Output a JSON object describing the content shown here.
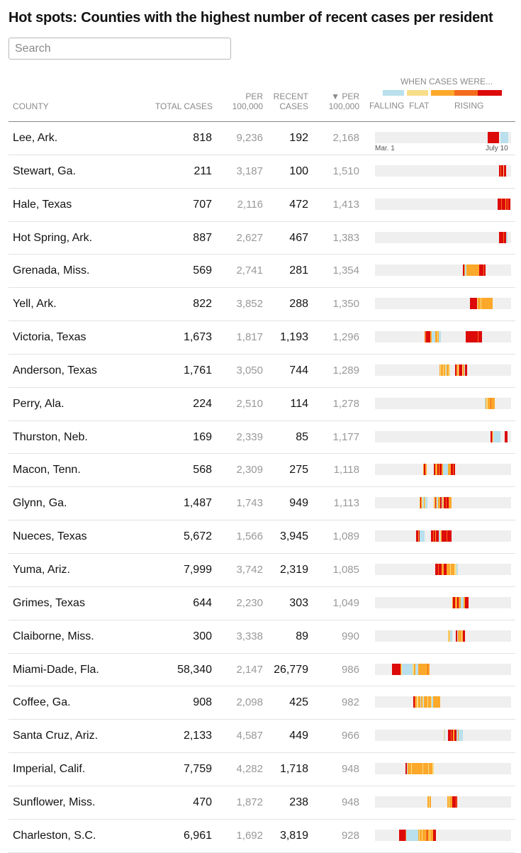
{
  "title": "Hot spots: Counties with the highest number of recent cases per resident",
  "search": {
    "placeholder": "Search"
  },
  "headers": {
    "county": "COUNTY",
    "total": "TOTAL CASES",
    "per": [
      "PER",
      "100,000"
    ],
    "recent": [
      "RECENT",
      "CASES"
    ],
    "recent_per": [
      "▼ PER",
      "100,000"
    ]
  },
  "legend": {
    "title": "WHEN CASES WERE...",
    "falling": "FALLING",
    "flat": "FLAT",
    "rising": "RISING",
    "colors": {
      "none": "#efefef",
      "falling": "#b9e0ec",
      "flat": "#f8dd8a",
      "rising1": "#fca82a",
      "rising2": "#f56b1e",
      "rising3": "#dd0a0a"
    }
  },
  "axis": {
    "start": "Mar. 1",
    "end": "July 10"
  },
  "rows": [
    {
      "county": "Lee, Ark.",
      "total": "818",
      "per": "9,236",
      "recent": "192",
      "recent_per": "2,168",
      "trend": "...............................................................................................................................................................RRRRRRRRRRRRRRRRrrfffffffffff"
    },
    {
      "county": "Stewart, Ga.",
      "total": "211",
      "per": "3,187",
      "recent": "100",
      "recent_per": "1,510",
      "trend": "...............................................................................................................................................................................RRmRRRYRRR"
    },
    {
      "county": "Hale, Texas",
      "total": "707",
      "per": "2,116",
      "recent": "472",
      "recent_per": "1,413",
      "trend": ".............................................................................................................................................................................RRRRRmRRRRRoRRmRRR"
    },
    {
      "county": "Hot Spring, Ark.",
      "total": "887",
      "per": "2,627",
      "recent": "467",
      "recent_per": "1,383",
      "trend": "...............................................................................................................................................................................RRRRRRmRRRff"
    },
    {
      "county": "Grenada, Miss.",
      "total": "569",
      "per": "2,741",
      "recent": "281",
      "recent_per": "1,354",
      "trend": "............................................................................................................................RRoffooooooooooooooooooRRRRRRmRR"
    },
    {
      "county": "Yell, Ark.",
      "total": "822",
      "per": "3,852",
      "recent": "288",
      "recent_per": "1,350",
      "trend": "......................................................................................................................................RRRRRRRRRRYooooYoooooooooooooooo"
    },
    {
      "county": "Victoria, Texas",
      "total": "1,673",
      "per": "1,817",
      "recent": "1,193",
      "recent_per": "1,296",
      "trend": "......................................................................mmRRRRRRoofffffoooYofff...................................RRRRRRRRRRRRRRRRRmRRRRR"
    },
    {
      "county": "Anderson, Texas",
      "total": "1,761",
      "per": "3,050",
      "recent": "744",
      "recent_per": "1,289",
      "trend": "...........................................................................................oYoooYooYfoooYY.......RRooYmRRRRYoofRRR"
    },
    {
      "county": "Perry, Ala.",
      "total": "224",
      "per": "2,510",
      "recent": "114",
      "recent_per": "1,278",
      "trend": "...........................................................................................................................................................foYYoooomooooo"
    },
    {
      "county": "Thurston, Neb.",
      "total": "169",
      "per": "2,339",
      "recent": "85",
      "recent_per": "1,177",
      "trend": "...................................................................................................................................................................RRmYffffffffff......RRRR"
    },
    {
      "county": "Macon, Tenn.",
      "total": "568",
      "per": "2,309",
      "recent": "275",
      "recent_per": "1,118",
      "trend": "....................................................................oRRoo..........RRoooRRoRRRoofffffffooooRRRmRR"
    },
    {
      "county": "Glynn, Ga.",
      "total": "1,487",
      "per": "1,743",
      "recent": "949",
      "recent_per": "1,113",
      "trend": "...............................................................oRoYffoYfff.........oYRoffoooRRfoYRRRmRRRoooo"
    },
    {
      "county": "Nueces, Texas",
      "total": "5,672",
      "per": "1,566",
      "recent": "3,945",
      "recent_per": "1,089",
      "trend": "..........................................................RRRoRfffffff.........RRRmRRoRRRRffYoRRRRRRRmRRRRRR"
    },
    {
      "county": "Yuma, Ariz.",
      "total": "7,999",
      "per": "3,742",
      "recent": "2,319",
      "recent_per": "1,085",
      "trend": ".....................................................................................RRRRmRRRRoooRRRRoooooYoooooYYYff"
    },
    {
      "county": "Grimes, Texas",
      "total": "644",
      "per": "2,230",
      "recent": "303",
      "recent_per": "1,049",
      "trend": ".............................................................................................................oRRRoooRRoooffffooRRRRR"
    },
    {
      "county": "Claiborne, Miss.",
      "total": "300",
      "per": "3,338",
      "recent": "89",
      "recent_per": "990",
      "trend": ".......................................................................................................YoYfff.....RRfoooooYoRRR"
    },
    {
      "county": "Miami-Dade, Fla.",
      "total": "58,340",
      "per": "2,147",
      "recent": "26,779",
      "recent_per": "986",
      "trend": "........................RRRRRRRRRRRRoYfffffffffffffffYYooffffooooooooooooomoo"
    },
    {
      "county": "Coffee, Ga.",
      "total": "908",
      "per": "2,098",
      "recent": "425",
      "recent_per": "982",
      "trend": "......................................................RRmooYYooofooYfoooooYooooYffoooooooooo"
    },
    {
      "county": "Santa Cruz, Ariz.",
      "total": "2,133",
      "per": "4,587",
      "recent": "449",
      "recent_per": "966",
      "trend": ".................................................................................................Yf....RRRRmRRooRRRffoffffff"
    },
    {
      "county": "Imperial, Calif.",
      "total": "7,759",
      "per": "4,282",
      "recent": "1,718",
      "recent_per": "948",
      "trend": "...........................................RRfoooooYoooooooooooooooYoooooooYoooooYY"
    },
    {
      "county": "Sunflower, Miss.",
      "total": "470",
      "per": "1,872",
      "recent": "238",
      "recent_per": "948",
      "trend": "..........................................................................ooYoo.......................ooYooooRRRRRmR"
    },
    {
      "county": "Charleston, S.C.",
      "total": "6,961",
      "per": "1,692",
      "recent": "3,819",
      "recent_per": "928",
      "trend": "..................................RRRRRRRRRmfffffffffffffffffoYoooYooooooRoooYooooRRRR"
    }
  ]
}
